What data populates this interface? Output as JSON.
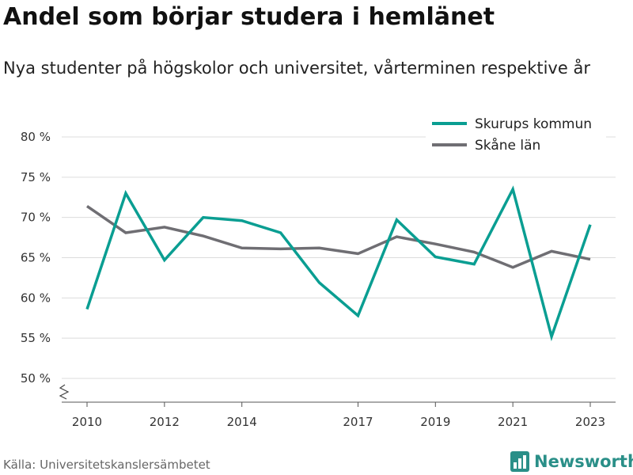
{
  "title": "Andel som börjar studera i hemlänet",
  "subtitle": "Nya studenter på högskolor och universitet, vårterminen respektive år",
  "source": "Källa: Universitetskanslersämbetet",
  "brand": {
    "name": "Newsworthy",
    "icon": "bar-chart-icon",
    "color": "#2a8f88"
  },
  "chart_data": {
    "type": "line",
    "x": [
      2010,
      2011,
      2012,
      2013,
      2014,
      2015,
      2016,
      2017,
      2018,
      2019,
      2020,
      2021,
      2022,
      2023
    ],
    "x_ticks": [
      2010,
      2012,
      2014,
      2017,
      2019,
      2021,
      2023
    ],
    "y_ticks": [
      50,
      55,
      60,
      65,
      70,
      75,
      80
    ],
    "y_tick_labels": [
      "50 %",
      "55 %",
      "60 %",
      "65 %",
      "70 %",
      "75 %",
      "80 %"
    ],
    "ylim": [
      50,
      80
    ],
    "y_axis_break": true,
    "grid": true,
    "legend_position": "top-right",
    "series": [
      {
        "name": "Skurups kommun",
        "color": "#0a9e92",
        "values": [
          58.6,
          73.0,
          64.7,
          70.0,
          69.6,
          68.1,
          61.9,
          57.8,
          69.7,
          65.1,
          64.2,
          73.5,
          55.2,
          69.1
        ]
      },
      {
        "name": "Skåne län",
        "color": "#6f6e73",
        "values": [
          71.4,
          68.1,
          68.8,
          67.7,
          66.2,
          66.1,
          66.2,
          65.5,
          67.6,
          66.7,
          65.7,
          63.8,
          65.8,
          64.8
        ]
      }
    ]
  }
}
